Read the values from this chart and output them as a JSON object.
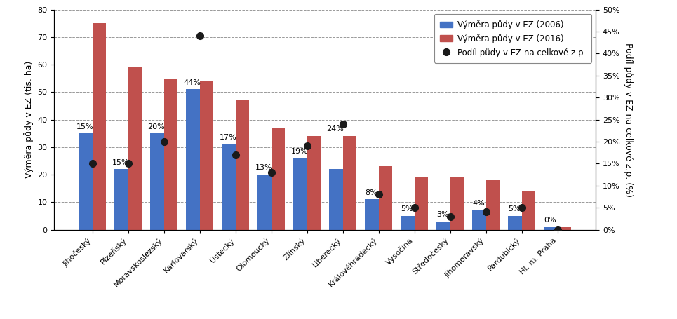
{
  "categories": [
    "Jihočeský",
    "Plzeňský",
    "Moravskoslezský",
    "Karlovarský",
    "Ústecký",
    "Olomoucký",
    "Zlínský",
    "Liberecký",
    "Královéhradecký",
    "Vysočina",
    "Středočeský",
    "Jihomoravský",
    "Pardubický",
    "Hl. m. Praha"
  ],
  "values_2006": [
    35,
    22,
    35,
    51,
    31,
    20,
    26,
    22,
    11,
    5,
    3,
    7,
    5,
    1
  ],
  "values_2016": [
    75,
    59,
    55,
    54,
    47,
    37,
    34,
    34,
    23,
    19,
    19,
    18,
    14,
    1
  ],
  "podil": [
    15,
    15,
    20,
    44,
    17,
    13,
    19,
    24,
    8,
    5,
    3,
    4,
    5,
    0
  ],
  "color_2006": "#4472C4",
  "color_2016": "#C0504D",
  "color_dot": "#1a1a1a",
  "ylabel_left": "Výměra půdy v EZ (tis. ha)",
  "ylabel_right": "Podíl půdy v EZ na celkové z.p. (%)",
  "ylim_left": [
    0,
    80
  ],
  "ylim_right": [
    0,
    50
  ],
  "yticks_left": [
    0,
    10,
    20,
    30,
    40,
    50,
    60,
    70,
    80
  ],
  "yticks_right": [
    0,
    5,
    10,
    15,
    20,
    25,
    30,
    35,
    40,
    45,
    50
  ],
  "ytick_labels_right": [
    "0%",
    "5%",
    "10%",
    "15%",
    "20%",
    "25%",
    "30%",
    "35%",
    "40%",
    "45%",
    "50%"
  ],
  "legend_2006": "Výměra půdy v EZ (2006)",
  "legend_2016": "Výměra půdy v EZ (2016)",
  "legend_dot": "Podíl půdy v EZ na celkové z.p.",
  "bar_width": 0.38,
  "background_color": "#FFFFFF",
  "grid_color": "#808080",
  "axis_fontsize": 9,
  "tick_fontsize": 8,
  "label_fontsize": 8,
  "percent_labels": [
    "15%",
    "15%",
    "20%",
    "44%",
    "17%",
    "13%",
    "19%",
    "24%",
    "8%",
    "5%",
    "3%",
    "4%",
    "5%",
    "0%"
  ],
  "percent_label_heights": [
    35,
    22,
    35,
    51,
    31,
    20,
    26,
    34,
    11,
    5,
    3,
    7,
    5,
    1
  ]
}
